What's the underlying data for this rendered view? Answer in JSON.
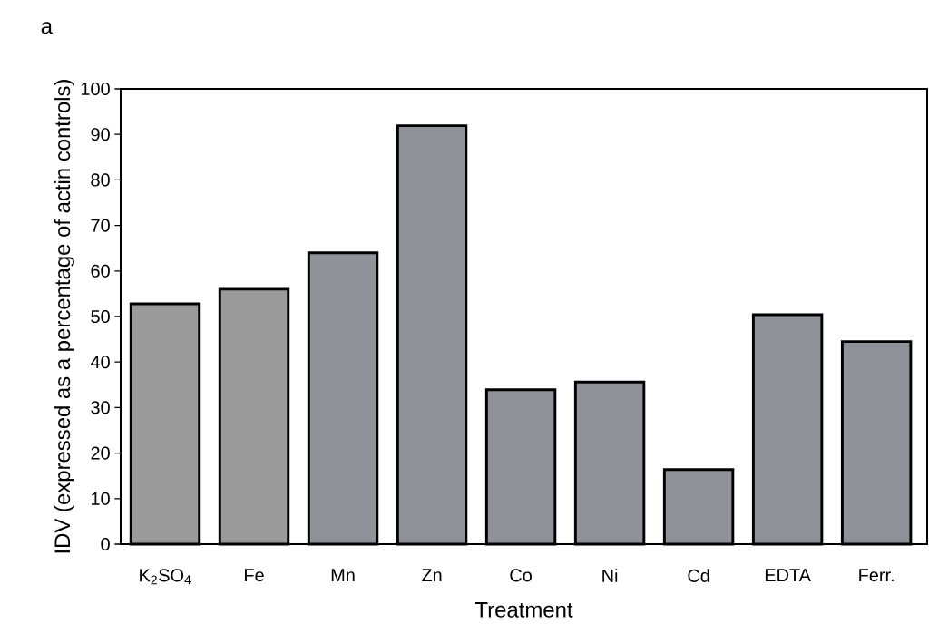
{
  "chart_data": {
    "type": "bar",
    "categories": [
      "K$_{2}$SO$_{4}$",
      "Fe",
      "Mn",
      "Zn",
      "Co",
      "Ni",
      "Cd",
      "EDTA",
      "Ferr."
    ],
    "values": [
      52.8,
      56.0,
      64.0,
      91.9,
      33.9,
      35.6,
      16.4,
      50.4,
      44.5
    ],
    "colors": [
      "#9a9a9a",
      "#9a9a9a",
      "#90929a",
      "#90929a",
      "#90929a",
      "#90929a",
      "#90929a",
      "#90929a",
      "#90929a"
    ],
    "xlabel": "Treatment",
    "ylabel": "IDV (expressed as a percentage of actin controls)",
    "ylim": [
      0,
      100
    ],
    "yticks": [
      0,
      10,
      20,
      30,
      40,
      50,
      60,
      70,
      80,
      90,
      100
    ],
    "annotations": [
      "a"
    ]
  }
}
